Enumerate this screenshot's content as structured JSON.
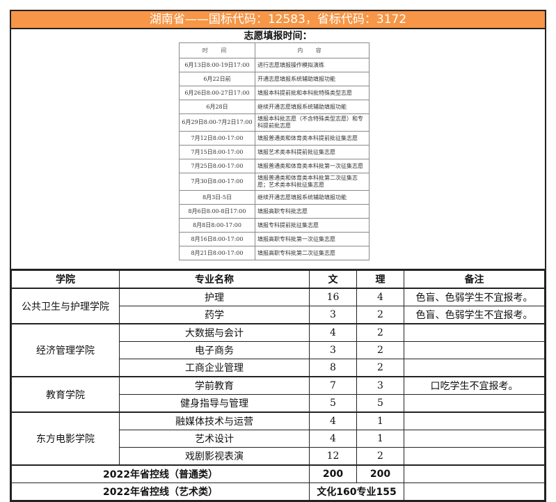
{
  "title": "湖南省——国标代码：12583，省标代码：3172",
  "schedule": {
    "title": "志愿填报时间：",
    "headers": [
      "时 间",
      "内 容"
    ],
    "rows": [
      [
        "6月13日8:00-19日17:00",
        "进行志愿填报操作模拟演练"
      ],
      [
        "6月22日前",
        "开通志愿填报系统辅助填报功能"
      ],
      [
        "6月26日8:00-27日17:00",
        "填报本科提前批和本科批特殊类型志愿"
      ],
      [
        "6月28日",
        "继续开通志愿填报系统辅助填报功能"
      ],
      [
        "6月29日8:00-7月2日17:00",
        "填报本科批志愿（不含特殊类型志愿）和专科提前批志愿"
      ],
      [
        "7月12日8:00-17:00",
        "填报普通类和体育类本科提前批征集志愿"
      ],
      [
        "7月15日8:00-17:00",
        "填报艺术类本科提前批征集志愿"
      ],
      [
        "7月25日8:00-17:00",
        "填报普通类和体育类本科批第一次征集志愿"
      ],
      [
        "7月30日8:00-17:00",
        "填报普通类和体育类本科批第二次征集志愿；艺术类本科批征集志愿"
      ],
      [
        "8月3日-5日",
        "继续开通志愿填报系统辅助填报功能"
      ],
      [
        "8月6日8:00-8日17:00",
        "填报高职专科批志愿"
      ],
      [
        "8月8日8:00-17:00",
        "填报专科提前批征集志愿"
      ],
      [
        "8月16日8:00-17:00",
        "填报高职专科批第一次征集志愿"
      ],
      [
        "8月21日8:00-17:00",
        "填报高职专科批第二次征集志愿"
      ]
    ]
  },
  "table": {
    "headers": [
      "学院",
      "专业名称",
      "文",
      "理",
      "备注"
    ],
    "colleges": [
      {
        "name": "公共卫生与护理学院",
        "majors": [
          [
            "护理",
            "16",
            "4",
            "色盲、色弱学生不宜报考。"
          ],
          [
            "药学",
            "3",
            "2",
            "色盲、色弱学生不宜报考。"
          ]
        ]
      },
      {
        "name": "经济管理学院",
        "majors": [
          [
            "大数据与会计",
            "4",
            "2",
            ""
          ],
          [
            "电子商务",
            "3",
            "2",
            ""
          ],
          [
            "工商企业管理",
            "8",
            "2",
            ""
          ]
        ]
      },
      {
        "name": "教育学院",
        "majors": [
          [
            "学前教育",
            "7",
            "3",
            "口吃学生不宜报考。"
          ],
          [
            "健身指导与管理",
            "5",
            "5",
            ""
          ]
        ]
      },
      {
        "name": "东方电影学院",
        "majors": [
          [
            "融媒体技术与运营",
            "4",
            "1",
            ""
          ],
          [
            "艺术设计",
            "4",
            "1",
            ""
          ],
          [
            "戏剧影视表演",
            "12",
            "2",
            ""
          ]
        ]
      }
    ],
    "control_general": {
      "label": "2022年省控线（普通类）",
      "wen": "200",
      "li": "200"
    },
    "control_art": {
      "label": "2022年省控线（艺术类）",
      "value": "文化160专业155"
    }
  },
  "colors": {
    "title_bg": "#F79646"
  }
}
